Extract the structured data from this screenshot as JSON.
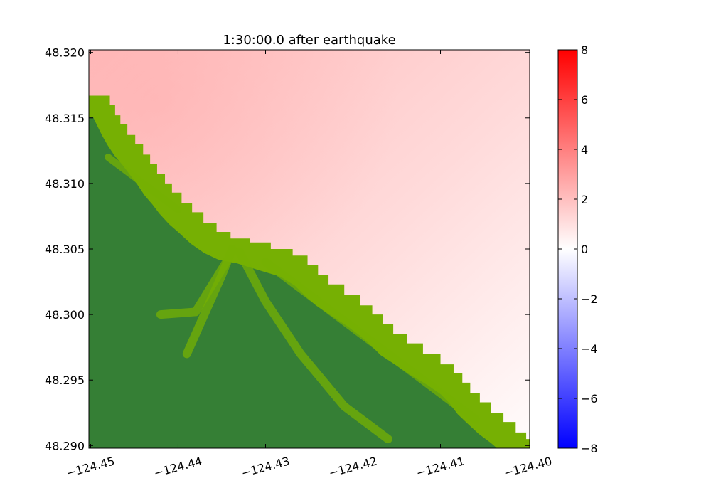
{
  "chart_data": {
    "type": "heatmap",
    "title": "1:30:00.0 after earthquake",
    "xlabel": "",
    "ylabel": "",
    "xlim": [
      -124.4502,
      -124.3998
    ],
    "ylim": [
      48.2898,
      48.3202
    ],
    "x_ticks": [
      -124.45,
      -124.44,
      -124.43,
      -124.42,
      -124.41,
      -124.4
    ],
    "x_tick_labels": [
      "−124.45",
      "−124.44",
      "−124.43",
      "−124.42",
      "−124.41",
      "−124.40"
    ],
    "y_ticks": [
      48.29,
      48.295,
      48.3,
      48.305,
      48.31,
      48.315,
      48.32
    ],
    "y_tick_labels": [
      "48.290",
      "48.295",
      "48.300",
      "48.305",
      "48.310",
      "48.315",
      "48.320"
    ],
    "grid": false,
    "colorbar": {
      "vmin": -8,
      "vmax": 8,
      "ticks": [
        -8,
        -6,
        -4,
        -2,
        0,
        2,
        4,
        6,
        8
      ],
      "tick_labels": [
        "−8",
        "−6",
        "−4",
        "−2",
        "0",
        "2",
        "4",
        "6",
        "8"
      ],
      "colormap": [
        "#0000ff",
        "#ffffff",
        "#ff0000"
      ]
    },
    "water_surface_range": [
      0.1,
      2.2
    ],
    "land_colors": {
      "lowland": "#76b003",
      "upland": "#357f35"
    },
    "shoreline": [
      {
        "lon": -124.4502,
        "lat": 48.3167
      },
      {
        "lon": -124.4483,
        "lat": 48.3167
      },
      {
        "lon": -124.4478,
        "lat": 48.316
      },
      {
        "lon": -124.4472,
        "lat": 48.3152
      },
      {
        "lon": -124.4466,
        "lat": 48.3145
      },
      {
        "lon": -124.4458,
        "lat": 48.3137
      },
      {
        "lon": -124.4449,
        "lat": 48.313
      },
      {
        "lon": -124.444,
        "lat": 48.3122
      },
      {
        "lon": -124.4432,
        "lat": 48.3115
      },
      {
        "lon": -124.4424,
        "lat": 48.3107
      },
      {
        "lon": -124.4415,
        "lat": 48.31
      },
      {
        "lon": -124.4407,
        "lat": 48.3093
      },
      {
        "lon": -124.4396,
        "lat": 48.3085
      },
      {
        "lon": -124.4384,
        "lat": 48.3078
      },
      {
        "lon": -124.4371,
        "lat": 48.307
      },
      {
        "lon": -124.4356,
        "lat": 48.3063
      },
      {
        "lon": -124.434,
        "lat": 48.3058
      },
      {
        "lon": -124.4318,
        "lat": 48.3055
      },
      {
        "lon": -124.4294,
        "lat": 48.305
      },
      {
        "lon": -124.4269,
        "lat": 48.3045
      },
      {
        "lon": -124.4252,
        "lat": 48.3038
      },
      {
        "lon": -124.424,
        "lat": 48.303
      },
      {
        "lon": -124.4228,
        "lat": 48.3023
      },
      {
        "lon": -124.421,
        "lat": 48.3015
      },
      {
        "lon": -124.4192,
        "lat": 48.3007
      },
      {
        "lon": -124.4178,
        "lat": 48.3
      },
      {
        "lon": -124.4166,
        "lat": 48.2993
      },
      {
        "lon": -124.4154,
        "lat": 48.2985
      },
      {
        "lon": -124.4138,
        "lat": 48.2978
      },
      {
        "lon": -124.412,
        "lat": 48.297
      },
      {
        "lon": -124.41,
        "lat": 48.2962
      },
      {
        "lon": -124.4085,
        "lat": 48.2955
      },
      {
        "lon": -124.4075,
        "lat": 48.2948
      },
      {
        "lon": -124.4066,
        "lat": 48.294
      },
      {
        "lon": -124.4055,
        "lat": 48.2933
      },
      {
        "lon": -124.4042,
        "lat": 48.2925
      },
      {
        "lon": -124.4028,
        "lat": 48.2918
      },
      {
        "lon": -124.4014,
        "lat": 48.291
      },
      {
        "lon": -124.4002,
        "lat": 48.2905
      },
      {
        "lon": -124.3998,
        "lat": 48.2903
      }
    ]
  }
}
